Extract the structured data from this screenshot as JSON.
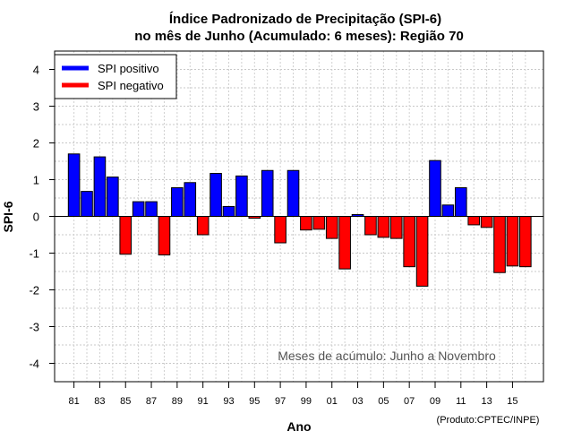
{
  "chart_data": {
    "type": "bar",
    "title": "Índice Padronizado de Precipitação (SPI-6)",
    "subtitle": "no mês de Junho (Acumulado: 6 meses): Região 70",
    "xlabel": "Ano",
    "ylabel": "SPI-6",
    "ylim": [
      -4.5,
      4.5
    ],
    "yticks": [
      "-4",
      "-3",
      "-2",
      "-1",
      "0",
      "1",
      "2",
      "3",
      "4"
    ],
    "grid": true,
    "legend_position": "top-left",
    "years": [
      1981,
      1982,
      1983,
      1984,
      1985,
      1986,
      1987,
      1988,
      1989,
      1990,
      1991,
      1992,
      1993,
      1994,
      1995,
      1996,
      1997,
      1998,
      1999,
      2000,
      2001,
      2002,
      2003,
      2004,
      2005,
      2006,
      2007,
      2008,
      2009,
      2010,
      2011,
      2012,
      2013,
      2014,
      2015,
      2016
    ],
    "tick_labels": [
      "81",
      "83",
      "85",
      "87",
      "89",
      "91",
      "93",
      "95",
      "97",
      "99",
      "01",
      "03",
      "05",
      "07",
      "09",
      "11",
      "13",
      "15"
    ],
    "values": [
      1.7,
      0.68,
      1.62,
      1.07,
      -1.03,
      0.4,
      0.4,
      -1.05,
      0.78,
      0.92,
      -0.5,
      1.17,
      0.27,
      1.1,
      -0.05,
      1.25,
      -0.72,
      1.25,
      -0.37,
      -0.35,
      -0.6,
      -1.43,
      0.05,
      -0.5,
      -0.57,
      -0.6,
      -1.37,
      -1.9,
      1.52,
      0.31,
      0.78,
      -0.23,
      -0.3,
      -1.53,
      -1.35,
      -1.37
    ],
    "series": [
      {
        "name": "SPI positivo",
        "color": "#0000ff"
      },
      {
        "name": "SPI negativo",
        "color": "#ff0000"
      }
    ],
    "annotation": "Meses de acúmulo: Junho a Novembro"
  },
  "credit": "(Produto:CPTEC/INPE)"
}
